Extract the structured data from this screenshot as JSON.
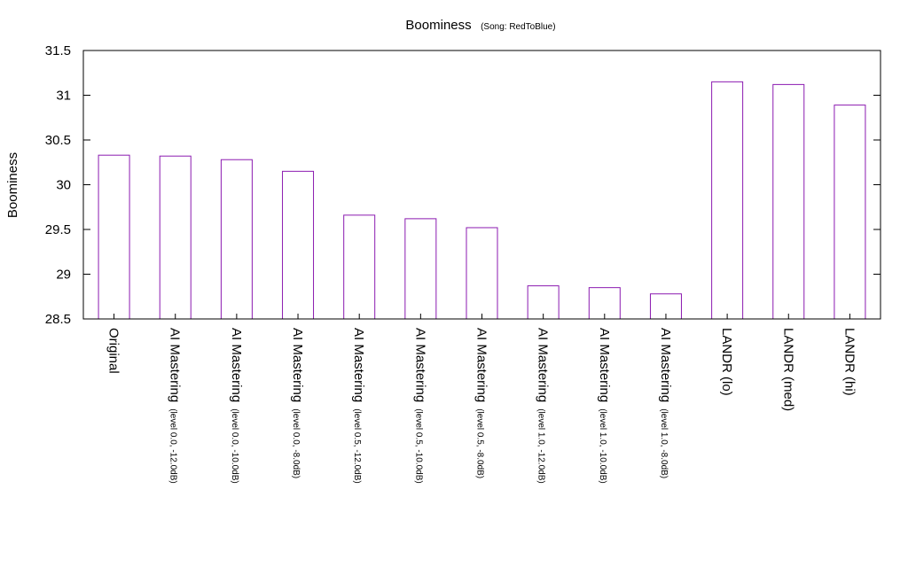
{
  "chart_data": {
    "type": "bar",
    "title": "Boominess",
    "subtitle": "(Song: RedToBlue)",
    "xlabel": "",
    "ylabel": "Boominess",
    "ylim": [
      28.5,
      31.5
    ],
    "yticks": [
      "28.5",
      "29",
      "29.5",
      "30",
      "30.5",
      "31",
      "31.5"
    ],
    "grid": false,
    "bar_color": "#8b1ab0",
    "categories": [
      {
        "name": "Original",
        "detail": ""
      },
      {
        "name": "AI Mastering",
        "detail": "(level 0.0, -12.0dB)"
      },
      {
        "name": "AI Mastering",
        "detail": "(level 0.0, -10.0dB)"
      },
      {
        "name": "AI Mastering",
        "detail": "(level 0.0, -8.0dB)"
      },
      {
        "name": "AI Mastering",
        "detail": "(level 0.5, -12.0dB)"
      },
      {
        "name": "AI Mastering",
        "detail": "(level 0.5, -10.0dB)"
      },
      {
        "name": "AI Mastering",
        "detail": "(level 0.5, -8.0dB)"
      },
      {
        "name": "AI Mastering",
        "detail": "(level 1.0, -12.0dB)"
      },
      {
        "name": "AI Mastering",
        "detail": "(level 1.0, -10.0dB)"
      },
      {
        "name": "AI Mastering",
        "detail": "(level 1.0, -8.0dB)"
      },
      {
        "name": "LANDR (lo)",
        "detail": ""
      },
      {
        "name": "LANDR (med)",
        "detail": ""
      },
      {
        "name": "LANDR (hi)",
        "detail": ""
      }
    ],
    "values": [
      30.33,
      30.32,
      30.28,
      30.15,
      29.66,
      29.62,
      29.52,
      28.87,
      28.85,
      28.78,
      31.15,
      31.12,
      30.89
    ]
  }
}
